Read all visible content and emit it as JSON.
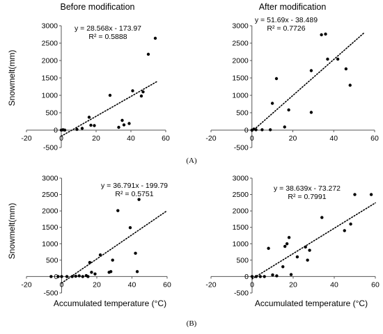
{
  "figure": {
    "row_labels": [
      "(A)",
      "(B)"
    ]
  },
  "chart_data": [
    {
      "type": "scatter",
      "title": "Before modification",
      "ylabel": "Snowmelt(mm)",
      "xlabel": "",
      "xlim": [
        -20,
        60
      ],
      "ylim": [
        -500,
        3000
      ],
      "xticks": [
        "-20",
        "0",
        "20",
        "40",
        "60"
      ],
      "yticks": [
        "-500",
        "0",
        "500",
        "1000",
        "1500",
        "2000",
        "2500",
        "3000"
      ],
      "equation": "y = 28.568x - 173.97",
      "r2": "R² = 0.5888",
      "trendline": {
        "slope": 28.568,
        "intercept": -173.97,
        "x_range": [
          0,
          55
        ]
      },
      "points": [
        [
          0,
          0
        ],
        [
          1,
          10
        ],
        [
          2,
          0
        ],
        [
          9,
          20
        ],
        [
          12,
          50
        ],
        [
          16,
          370
        ],
        [
          17,
          140
        ],
        [
          19,
          130
        ],
        [
          28,
          1000
        ],
        [
          33,
          80
        ],
        [
          35,
          280
        ],
        [
          36,
          150
        ],
        [
          39,
          190
        ],
        [
          41,
          1130
        ],
        [
          46,
          980
        ],
        [
          47,
          1100
        ],
        [
          50,
          2180
        ],
        [
          54,
          2640
        ]
      ]
    },
    {
      "type": "scatter",
      "title": "After modification",
      "ylabel": "",
      "xlabel": "",
      "xlim": [
        -20,
        60
      ],
      "ylim": [
        -500,
        3000
      ],
      "xticks": [
        "-20",
        "0",
        "20",
        "40",
        "60"
      ],
      "yticks": [
        "-500",
        "0",
        "500",
        "1000",
        "1500",
        "2000",
        "2500",
        "3000"
      ],
      "equation": "y = 51.69x - 38.489",
      "r2": "R² = 0.7726",
      "trendline": {
        "slope": 51.69,
        "intercept": -38.489,
        "x_range": [
          0,
          55
        ]
      },
      "points": [
        [
          0,
          0
        ],
        [
          1,
          30
        ],
        [
          2,
          10
        ],
        [
          5,
          10
        ],
        [
          9,
          10
        ],
        [
          10,
          770
        ],
        [
          12,
          1480
        ],
        [
          16,
          90
        ],
        [
          18,
          580
        ],
        [
          29,
          1710
        ],
        [
          29,
          510
        ],
        [
          34,
          2740
        ],
        [
          36,
          2760
        ],
        [
          37,
          2040
        ],
        [
          42,
          2040
        ],
        [
          46,
          1760
        ],
        [
          48,
          1290
        ]
      ]
    },
    {
      "type": "scatter",
      "title": "",
      "ylabel": "Snowmelt(mm)",
      "xlabel": "Accumulated temperature (°C)",
      "xlim": [
        -20,
        60
      ],
      "ylim": [
        -500,
        3000
      ],
      "xticks": [
        "-20",
        "0",
        "20",
        "40",
        "60"
      ],
      "yticks": [
        "-500",
        "0",
        "500",
        "1000",
        "1500",
        "2000",
        "2500",
        "3000"
      ],
      "equation": "y = 36.791x - 199.79",
      "r2": "R² = 0.5751",
      "trendline": {
        "slope": 36.791,
        "intercept": -199.79,
        "x_range": [
          0,
          60
        ]
      },
      "points": [
        [
          -6,
          0
        ],
        [
          -2,
          0
        ],
        [
          0,
          0
        ],
        [
          3,
          0
        ],
        [
          6,
          0
        ],
        [
          8,
          10
        ],
        [
          10,
          20
        ],
        [
          12,
          0
        ],
        [
          14,
          30
        ],
        [
          15,
          0
        ],
        [
          16,
          430
        ],
        [
          17,
          130
        ],
        [
          19,
          80
        ],
        [
          22,
          660
        ],
        [
          27,
          130
        ],
        [
          28,
          150
        ],
        [
          29,
          500
        ],
        [
          32,
          2010
        ],
        [
          39,
          1490
        ],
        [
          42,
          710
        ],
        [
          43,
          150
        ],
        [
          44,
          2350
        ]
      ]
    },
    {
      "type": "scatter",
      "title": "",
      "ylabel": "",
      "xlabel": "Accumulated temperature (°C)",
      "xlim": [
        -20,
        60
      ],
      "ylim": [
        -500,
        3000
      ],
      "xticks": [
        "-20",
        "0",
        "20",
        "40",
        "60"
      ],
      "yticks": [
        "-500",
        "0",
        "500",
        "1000",
        "1500",
        "2000",
        "2500",
        "3000"
      ],
      "equation": "y = 38.639x - 73.272",
      "r2": "R² = 0.7991",
      "trendline": {
        "slope": 38.639,
        "intercept": -73.272,
        "x_range": [
          0,
          60
        ]
      },
      "points": [
        [
          0,
          0
        ],
        [
          2,
          0
        ],
        [
          4,
          0
        ],
        [
          6,
          0
        ],
        [
          8,
          860
        ],
        [
          10,
          50
        ],
        [
          12,
          20
        ],
        [
          15,
          300
        ],
        [
          16,
          920
        ],
        [
          17,
          1000
        ],
        [
          18,
          1190
        ],
        [
          19,
          60
        ],
        [
          22,
          600
        ],
        [
          26,
          900
        ],
        [
          27,
          500
        ],
        [
          28,
          800
        ],
        [
          34,
          1800
        ],
        [
          45,
          1400
        ],
        [
          48,
          1600
        ],
        [
          50,
          2500
        ],
        [
          58,
          2500
        ]
      ]
    }
  ]
}
